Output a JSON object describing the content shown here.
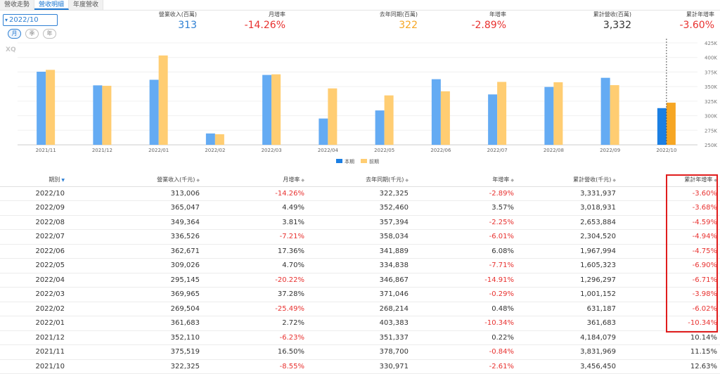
{
  "tabs": [
    "營收走勢",
    "營收明細",
    "年度營收"
  ],
  "period": "2022/10",
  "freq": [
    "月",
    "季",
    "年"
  ],
  "summary": [
    {
      "label": "營業收入(百萬)",
      "value": "313",
      "color": "blue"
    },
    {
      "label": "月增率",
      "value": "-14.26%",
      "color": "red"
    },
    {
      "label": "去年同期(百萬)",
      "value": "322",
      "color": "orange"
    },
    {
      "label": "年增率",
      "value": "-2.89%",
      "color": "red"
    },
    {
      "label": "累計營收(百萬)",
      "value": "3,332",
      "color": "dark"
    },
    {
      "label": "累計年增率",
      "value": "-3.60%",
      "color": "red"
    }
  ],
  "watermark": "XQ",
  "chart_data": {
    "type": "bar",
    "categories": [
      "2021/11",
      "2021/12",
      "2022/01",
      "2022/02",
      "2022/03",
      "2022/04",
      "2022/05",
      "2022/06",
      "2022/07",
      "2022/08",
      "2022/09",
      "2022/10"
    ],
    "series": [
      {
        "name": "本期",
        "color": "#64abf3",
        "highlight_color": "#1b7fe3",
        "values": [
          375519,
          352110,
          361683,
          269504,
          369965,
          295145,
          309026,
          362671,
          336526,
          349364,
          365047,
          313006
        ]
      },
      {
        "name": "前期",
        "color": "#ffcd72",
        "highlight_color": "#f6a623",
        "values": [
          378700,
          351337,
          403383,
          268214,
          371046,
          346867,
          334838,
          341889,
          358034,
          357394,
          352460,
          322325
        ]
      }
    ],
    "yticks": [
      "425K",
      "400K",
      "375K",
      "350K",
      "325K",
      "300K",
      "275K",
      "250K"
    ],
    "ylim": [
      250000,
      425000
    ],
    "legend": [
      "本期",
      "前期"
    ]
  },
  "table": {
    "headers": [
      "期別",
      "營業收入(千元)",
      "月增率",
      "去年同期(千元)",
      "年增率",
      "累計營收(千元)",
      "累計年增率"
    ],
    "rows": [
      [
        "2022/10",
        "313,006",
        "-14.26%",
        "322,325",
        "-2.89%",
        "3,331,937",
        "-3.60%"
      ],
      [
        "2022/09",
        "365,047",
        "4.49%",
        "352,460",
        "3.57%",
        "3,018,931",
        "-3.68%"
      ],
      [
        "2022/08",
        "349,364",
        "3.81%",
        "357,394",
        "-2.25%",
        "2,653,884",
        "-4.59%"
      ],
      [
        "2022/07",
        "336,526",
        "-7.21%",
        "358,034",
        "-6.01%",
        "2,304,520",
        "-4.94%"
      ],
      [
        "2022/06",
        "362,671",
        "17.36%",
        "341,889",
        "6.08%",
        "1,967,994",
        "-4.75%"
      ],
      [
        "2022/05",
        "309,026",
        "4.70%",
        "334,838",
        "-7.71%",
        "1,605,323",
        "-6.90%"
      ],
      [
        "2022/04",
        "295,145",
        "-20.22%",
        "346,867",
        "-14.91%",
        "1,296,297",
        "-6.71%"
      ],
      [
        "2022/03",
        "369,965",
        "37.28%",
        "371,046",
        "-0.29%",
        "1,001,152",
        "-3.98%"
      ],
      [
        "2022/02",
        "269,504",
        "-25.49%",
        "268,214",
        "0.48%",
        "631,187",
        "-6.02%"
      ],
      [
        "2022/01",
        "361,683",
        "2.72%",
        "403,383",
        "-10.34%",
        "361,683",
        "-10.34%"
      ],
      [
        "2021/12",
        "352,110",
        "-6.23%",
        "351,337",
        "0.22%",
        "4,184,079",
        "10.14%"
      ],
      [
        "2021/11",
        "375,519",
        "16.50%",
        "378,700",
        "-0.84%",
        "3,831,969",
        "11.15%"
      ],
      [
        "2021/10",
        "322,325",
        "-8.55%",
        "330,971",
        "-2.61%",
        "3,456,450",
        "12.63%"
      ]
    ]
  }
}
